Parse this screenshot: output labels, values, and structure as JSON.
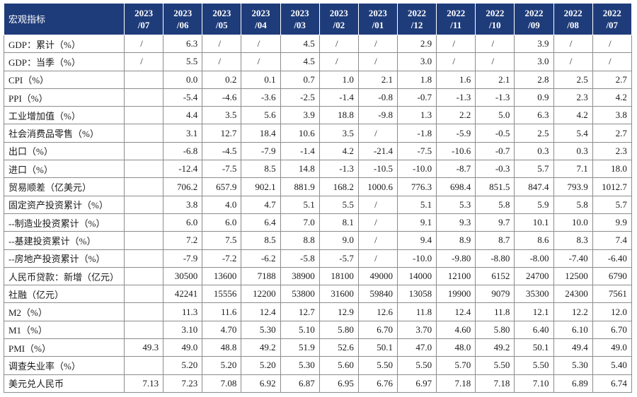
{
  "header": {
    "title": "宏观指标",
    "periods": [
      {
        "year": "2023",
        "month": "/07"
      },
      {
        "year": "2023",
        "month": "/06"
      },
      {
        "year": "2023",
        "month": "/05"
      },
      {
        "year": "2023",
        "month": "/04"
      },
      {
        "year": "2023",
        "month": "/03"
      },
      {
        "year": "2023",
        "month": "/02"
      },
      {
        "year": "2023",
        "month": "/01"
      },
      {
        "year": "2022",
        "month": "/12"
      },
      {
        "year": "2022",
        "month": "/11"
      },
      {
        "year": "2022",
        "month": "/10"
      },
      {
        "year": "2022",
        "month": "/09"
      },
      {
        "year": "2022",
        "month": "/08"
      },
      {
        "year": "2022",
        "month": "/07"
      }
    ]
  },
  "rows": [
    {
      "label": "GDP：累计（%）",
      "values": [
        "/",
        "6.3",
        "/",
        "/",
        "4.5",
        "/",
        "/",
        "2.9",
        "/",
        "/",
        "3.9",
        "/",
        "/"
      ]
    },
    {
      "label": "GDP：当季（%）",
      "values": [
        "/",
        "5.5",
        "/",
        "/",
        "4.5",
        "/",
        "/",
        "3.0",
        "/",
        "/",
        "3.0",
        "/",
        "/"
      ]
    },
    {
      "label": "CPI（%）",
      "values": [
        "",
        "0.0",
        "0.2",
        "0.1",
        "0.7",
        "1.0",
        "2.1",
        "1.8",
        "1.6",
        "2.1",
        "2.8",
        "2.5",
        "2.7"
      ]
    },
    {
      "label": "PPI（%）",
      "values": [
        "",
        "-5.4",
        "-4.6",
        "-3.6",
        "-2.5",
        "-1.4",
        "-0.8",
        "-0.7",
        "-1.3",
        "-1.3",
        "0.9",
        "2.3",
        "4.2"
      ]
    },
    {
      "label": "工业增加值（%）",
      "values": [
        "",
        "4.4",
        "3.5",
        "5.6",
        "3.9",
        "18.8",
        "-9.8",
        "1.3",
        "2.2",
        "5.0",
        "6.3",
        "4.2",
        "3.8"
      ]
    },
    {
      "label": "社会消费品零售（%）",
      "values": [
        "",
        "3.1",
        "12.7",
        "18.4",
        "10.6",
        "3.5",
        "/",
        "-1.8",
        "-5.9",
        "-0.5",
        "2.5",
        "5.4",
        "2.7"
      ]
    },
    {
      "label": "出口（%）",
      "values": [
        "",
        "-6.8",
        "-4.5",
        "-7.9",
        "-1.4",
        "4.2",
        "-21.4",
        "-7.5",
        "-10.6",
        "-0.7",
        "0.3",
        "0.3",
        "2.3"
      ]
    },
    {
      "label": "进口（%）",
      "values": [
        "",
        "-12.4",
        "-7.5",
        "8.5",
        "14.8",
        "-1.3",
        "-10.5",
        "-10.0",
        "-8.7",
        "-0.3",
        "5.7",
        "7.1",
        "18.0"
      ]
    },
    {
      "label": "贸易顺差（亿美元）",
      "values": [
        "",
        "706.2",
        "657.9",
        "902.1",
        "881.9",
        "168.2",
        "1000.6",
        "776.3",
        "698.4",
        "851.5",
        "847.4",
        "793.9",
        "1012.7"
      ]
    },
    {
      "label": "固定资产投资累计（%）",
      "values": [
        "",
        "3.8",
        "4.0",
        "4.7",
        "5.1",
        "5.5",
        "/",
        "5.1",
        "5.3",
        "5.8",
        "5.9",
        "5.8",
        "5.7"
      ]
    },
    {
      "label": "--制造业投资累计（%）",
      "values": [
        "",
        "6.0",
        "6.0",
        "6.4",
        "7.0",
        "8.1",
        "/",
        "9.1",
        "9.3",
        "9.7",
        "10.1",
        "10.0",
        "9.9"
      ]
    },
    {
      "label": "--基建投资累计（%）",
      "values": [
        "",
        "7.2",
        "7.5",
        "8.5",
        "8.8",
        "9.0",
        "/",
        "9.4",
        "8.9",
        "8.7",
        "8.6",
        "8.3",
        "7.4"
      ]
    },
    {
      "label": "--房地产投资累计（%）",
      "values": [
        "",
        "-7.9",
        "-7.2",
        "-6.2",
        "-5.8",
        "-5.7",
        "/",
        "-10.0",
        "-9.80",
        "-8.80",
        "-8.00",
        "-7.40",
        "-6.40"
      ]
    },
    {
      "label": "人民币贷款：新增（亿元）",
      "values": [
        "",
        "30500",
        "13600",
        "7188",
        "38900",
        "18100",
        "49000",
        "14000",
        "12100",
        "6152",
        "24700",
        "12500",
        "6790"
      ]
    },
    {
      "label": "社融（亿元）",
      "values": [
        "",
        "42241",
        "15556",
        "12200",
        "53800",
        "31600",
        "59840",
        "13058",
        "19900",
        "9079",
        "35300",
        "24300",
        "7561"
      ]
    },
    {
      "label": "M2（%）",
      "values": [
        "",
        "11.3",
        "11.6",
        "12.4",
        "12.7",
        "12.9",
        "12.6",
        "11.8",
        "12.4",
        "11.8",
        "12.1",
        "12.2",
        "12.0"
      ]
    },
    {
      "label": "M1（%）",
      "values": [
        "",
        "3.10",
        "4.70",
        "5.30",
        "5.10",
        "5.80",
        "6.70",
        "3.70",
        "4.60",
        "5.80",
        "6.40",
        "6.10",
        "6.70"
      ]
    },
    {
      "label": "PMI（%）",
      "values": [
        "49.3",
        "49.0",
        "48.8",
        "49.2",
        "51.9",
        "52.6",
        "50.1",
        "47.0",
        "48.0",
        "49.2",
        "50.1",
        "49.4",
        "49.0"
      ]
    },
    {
      "label": "调查失业率（%）",
      "values": [
        "",
        "5.20",
        "5.20",
        "5.20",
        "5.30",
        "5.60",
        "5.50",
        "5.50",
        "5.70",
        "5.50",
        "5.50",
        "5.30",
        "5.40"
      ]
    },
    {
      "label": "美元兑人民币",
      "values": [
        "7.13",
        "7.23",
        "7.08",
        "6.92",
        "6.87",
        "6.95",
        "6.76",
        "6.97",
        "7.18",
        "7.18",
        "7.10",
        "6.89",
        "6.74"
      ]
    }
  ]
}
